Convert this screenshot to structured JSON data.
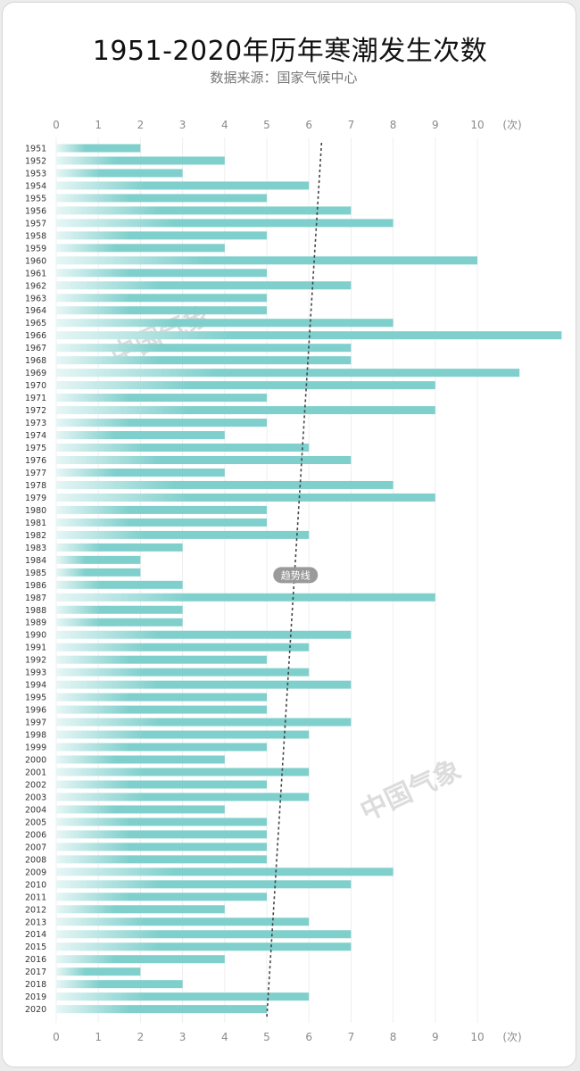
{
  "title": "1951-2020年历年寒潮发生次数",
  "source": "数据来源：国家气候中心",
  "trend_label": "趋势线",
  "watermark": "中国气象",
  "colors": {
    "bar": "#7fcfcc",
    "bar_light": "#e6f6f5",
    "trend": "#444444",
    "axis_text": "#8a8a8a"
  },
  "chart_data": {
    "type": "bar",
    "orientation": "horizontal",
    "title": "1951-2020年历年寒潮发生次数",
    "xlim": [
      0,
      12
    ],
    "xticks": [
      "0",
      "1",
      "2",
      "3",
      "4",
      "5",
      "6",
      "7",
      "8",
      "9",
      "10",
      "(次)"
    ],
    "categories": [
      "1951",
      "1952",
      "1953",
      "1954",
      "1955",
      "1956",
      "1957",
      "1958",
      "1959",
      "1960",
      "1961",
      "1962",
      "1963",
      "1964",
      "1965",
      "1966",
      "1967",
      "1968",
      "1969",
      "1970",
      "1971",
      "1972",
      "1973",
      "1974",
      "1975",
      "1976",
      "1977",
      "1978",
      "1979",
      "1980",
      "1981",
      "1982",
      "1983",
      "1984",
      "1985",
      "1986",
      "1987",
      "1988",
      "1989",
      "1990",
      "1991",
      "1992",
      "1993",
      "1994",
      "1995",
      "1996",
      "1997",
      "1998",
      "1999",
      "2000",
      "2001",
      "2002",
      "2003",
      "2004",
      "2005",
      "2006",
      "2007",
      "2008",
      "2009",
      "2010",
      "2011",
      "2012",
      "2013",
      "2014",
      "2015",
      "2016",
      "2017",
      "2018",
      "2019",
      "2020"
    ],
    "values": [
      2,
      4,
      3,
      6,
      5,
      7,
      8,
      5,
      4,
      10,
      5,
      7,
      5,
      5,
      8,
      12,
      7,
      7,
      11,
      9,
      5,
      9,
      5,
      4,
      6,
      7,
      4,
      8,
      9,
      5,
      5,
      6,
      3,
      2,
      2,
      3,
      9,
      3,
      3,
      7,
      6,
      5,
      6,
      7,
      5,
      5,
      7,
      6,
      5,
      4,
      6,
      5,
      6,
      4,
      5,
      5,
      5,
      5,
      8,
      7,
      5,
      4,
      6,
      7,
      7,
      4,
      2,
      3,
      6,
      5
    ],
    "trend": {
      "start": 6.3,
      "end": 5.0
    }
  }
}
